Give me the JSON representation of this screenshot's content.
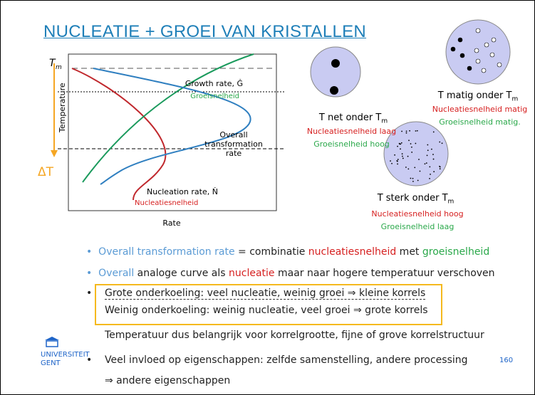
{
  "title": "NUCLEATIE + GROEI VAN KRISTALLEN",
  "diagram": {
    "tm_base": "T",
    "tm_sub": "m",
    "growth": "Growth rate, Ġ",
    "growth_nl": "Groeisnelheid",
    "overall": [
      "Overall",
      "transformation",
      "rate"
    ],
    "nucleation": "Nucleation rate, Ṅ",
    "nucleation_nl": "Nucleatiesnelheid",
    "y_axis": "Temperature",
    "x_axis": "Rate",
    "delta_t": "ΔT"
  },
  "circles": [
    {
      "caption": "T net onder T",
      "sub": "m",
      "lines": [
        "Nucleatiesnelheid laag",
        "Groeisnelheid hoog"
      ]
    },
    {
      "caption": "T matig onder T",
      "sub": "m",
      "lines": [
        "Nucleatiesnelheid matig",
        "Groeisnelheid matig."
      ]
    },
    {
      "caption": "T sterk onder T",
      "sub": "m",
      "lines": [
        "Nucleatiesnelheid hoog",
        "Groeisnelheid laag"
      ]
    }
  ],
  "bullets": [
    [
      "Overall transformation rate",
      " = combinatie ",
      "nucleatiesnelheid",
      " met ",
      "groeisnelheid"
    ],
    [
      "Overall",
      " analoge curve als ",
      "nucleatie",
      " maar naar hogere temperatuur verschoven"
    ],
    [
      "Grote onderkoeling: veel nucleatie, weinig groei ⇒ kleine korrels",
      "Weinig onderkoeling: weinig nucleatie, veel groei ⇒ grote korrels"
    ],
    [
      "Temperatuur dus belangrijk voor korrelgrootte, fijne of grove korrelstructuur"
    ],
    [
      "Veel invloed op eigenschappen: zelfde samenstelling, andere processing",
      "⇒ andere eigenschappen"
    ]
  ],
  "logo": [
    "UNIVERSITEIT",
    "GENT"
  ],
  "page_number": "160"
}
